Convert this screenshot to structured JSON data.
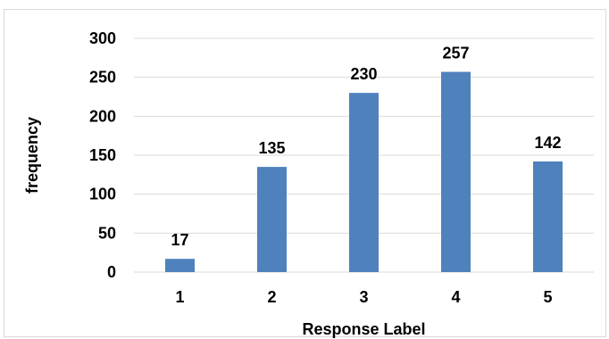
{
  "chart_data": {
    "type": "bar",
    "categories": [
      "1",
      "2",
      "3",
      "4",
      "5"
    ],
    "values": [
      17,
      135,
      230,
      257,
      142
    ],
    "data_labels": [
      "17",
      "135",
      "230",
      "257",
      "142"
    ],
    "xlabel": "Response Label",
    "ylabel": "frequency",
    "ylim": [
      0,
      300
    ],
    "yticks": [
      "0",
      "50",
      "100",
      "150",
      "200",
      "250",
      "300"
    ],
    "grid": true,
    "legend": "none",
    "bar_color": "#4f81bd",
    "grid_color": "#d9d9d9"
  }
}
